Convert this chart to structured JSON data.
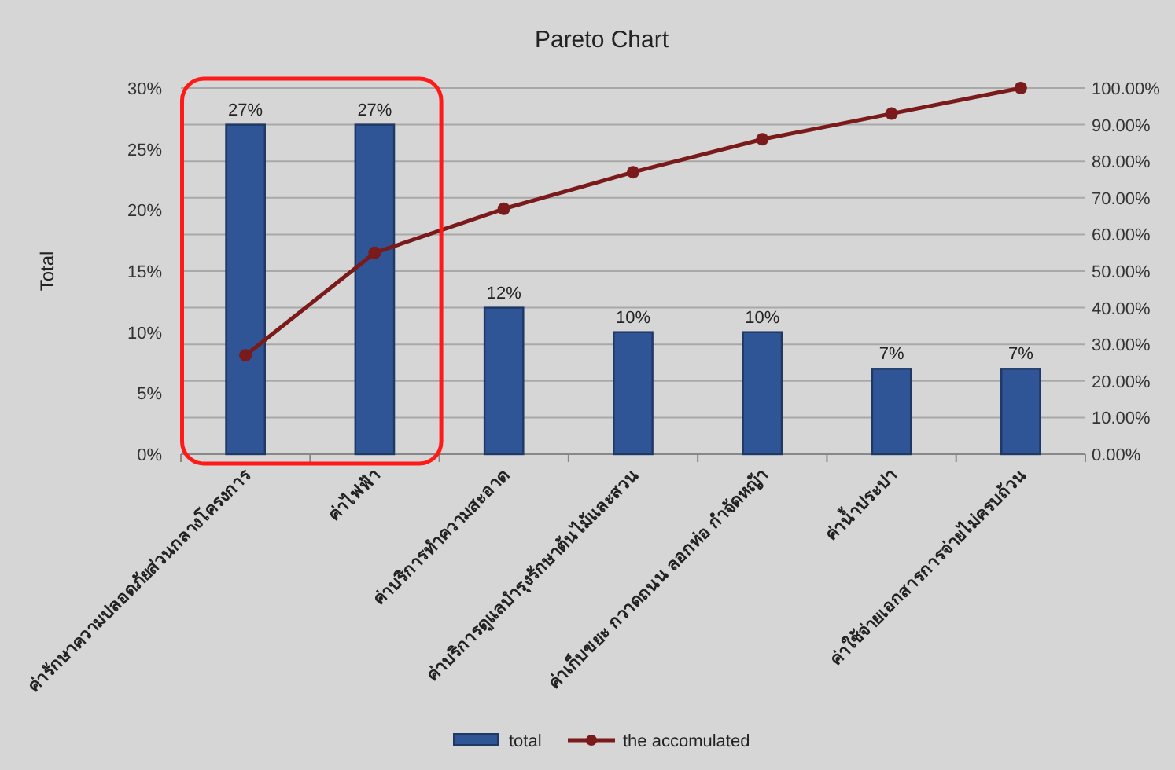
{
  "chart_data": {
    "type": "bar",
    "title": "Pareto Chart",
    "ylabel": "Total",
    "categories": [
      "ค่ารักษาความปลอดภัยส่วนกลางโครงการ",
      "ค่าไฟฟ้า",
      "ค่าบริการทำความสะอาด",
      "ค่าบริการดูแลบำรุงรักษาต้นไม้และสวน",
      "ค่าเก็บขยะ กวาดถนน ลอกท่อ กำจัดหญ้า",
      "ค่าน้ำประปา",
      "ค่าใช้จ่ายเอกสารการจ่ายไม่ครบถ้วน"
    ],
    "series": [
      {
        "name": "total",
        "color": "#2f5597",
        "values": [
          27,
          27,
          12,
          10,
          10,
          7,
          7
        ],
        "value_labels": [
          "27%",
          "27%",
          "12%",
          "10%",
          "10%",
          "7%",
          "7%"
        ]
      },
      {
        "name": "the accomulated",
        "type": "line",
        "axis": "y2",
        "color": "#7b1a1a",
        "marker": "circle",
        "values": [
          27,
          55,
          67,
          77,
          86,
          93,
          100
        ]
      }
    ],
    "ylim": [
      0,
      30
    ],
    "yticks": [
      {
        "value": 0,
        "label": "0%"
      },
      {
        "value": 5,
        "label": "5%"
      },
      {
        "value": 10,
        "label": "10%"
      },
      {
        "value": 15,
        "label": "15%"
      },
      {
        "value": 20,
        "label": "20%"
      },
      {
        "value": 25,
        "label": "25%"
      },
      {
        "value": 30,
        "label": "30%"
      }
    ],
    "y2lim": [
      0,
      100
    ],
    "y2ticks": [
      {
        "value": 0,
        "label": "0.00%"
      },
      {
        "value": 10,
        "label": "10.00%"
      },
      {
        "value": 20,
        "label": "20.00%"
      },
      {
        "value": 30,
        "label": "30.00%"
      },
      {
        "value": 40,
        "label": "40.00%"
      },
      {
        "value": 50,
        "label": "50.00%"
      },
      {
        "value": 60,
        "label": "60.00%"
      },
      {
        "value": 70,
        "label": "70.00%"
      },
      {
        "value": 80,
        "label": "80.00%"
      },
      {
        "value": 90,
        "label": "90.00%"
      },
      {
        "value": 100,
        "label": "100.00%"
      }
    ],
    "grid": true,
    "legend": "bottom"
  }
}
